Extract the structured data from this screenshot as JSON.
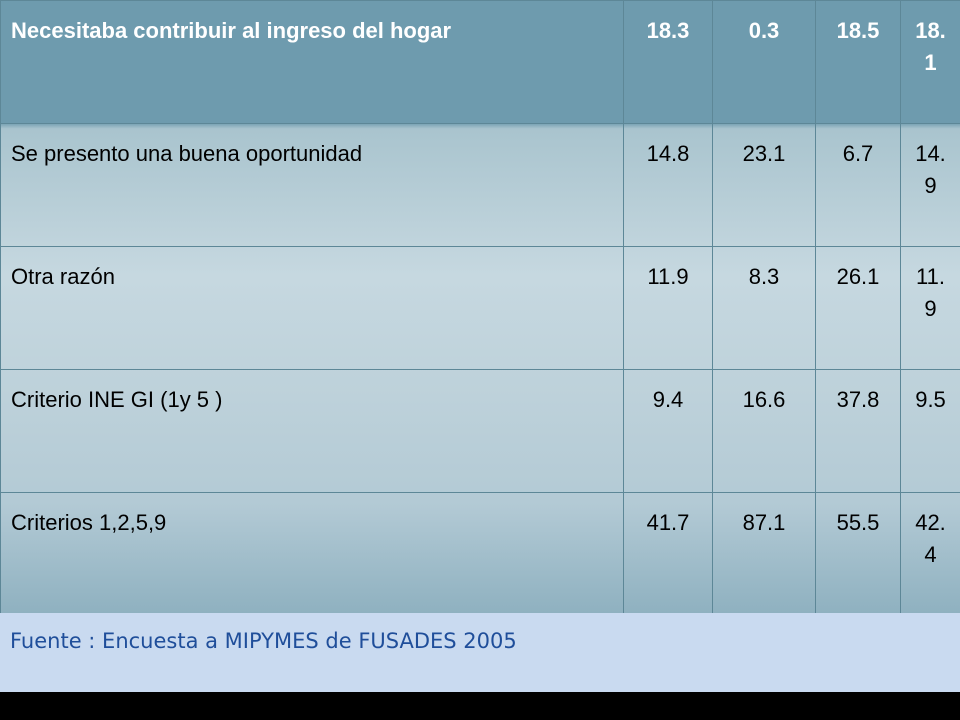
{
  "table": {
    "header": [
      "Necesitaba contribuir al ingreso del hogar",
      "18.3",
      "0.3",
      "18.5",
      "18.1"
    ],
    "rows": [
      [
        "Se presento una buena oportunidad",
        "14.8",
        "23.1",
        "6.7",
        "14.9"
      ],
      [
        "Otra razón",
        "11.9",
        "8.3",
        "26.1",
        "11.9"
      ],
      [
        "Criterio INE GI (1y 5 )",
        "9.4",
        "16.6",
        "37.8",
        "9.5"
      ],
      [
        "Criterios 1,2,5,9",
        "41.7",
        "87.1",
        "55.5",
        "42.4"
      ]
    ]
  },
  "footer": {
    "source": "Fuente : Encuesta a MIPYMES de FUSADES 2005"
  }
}
